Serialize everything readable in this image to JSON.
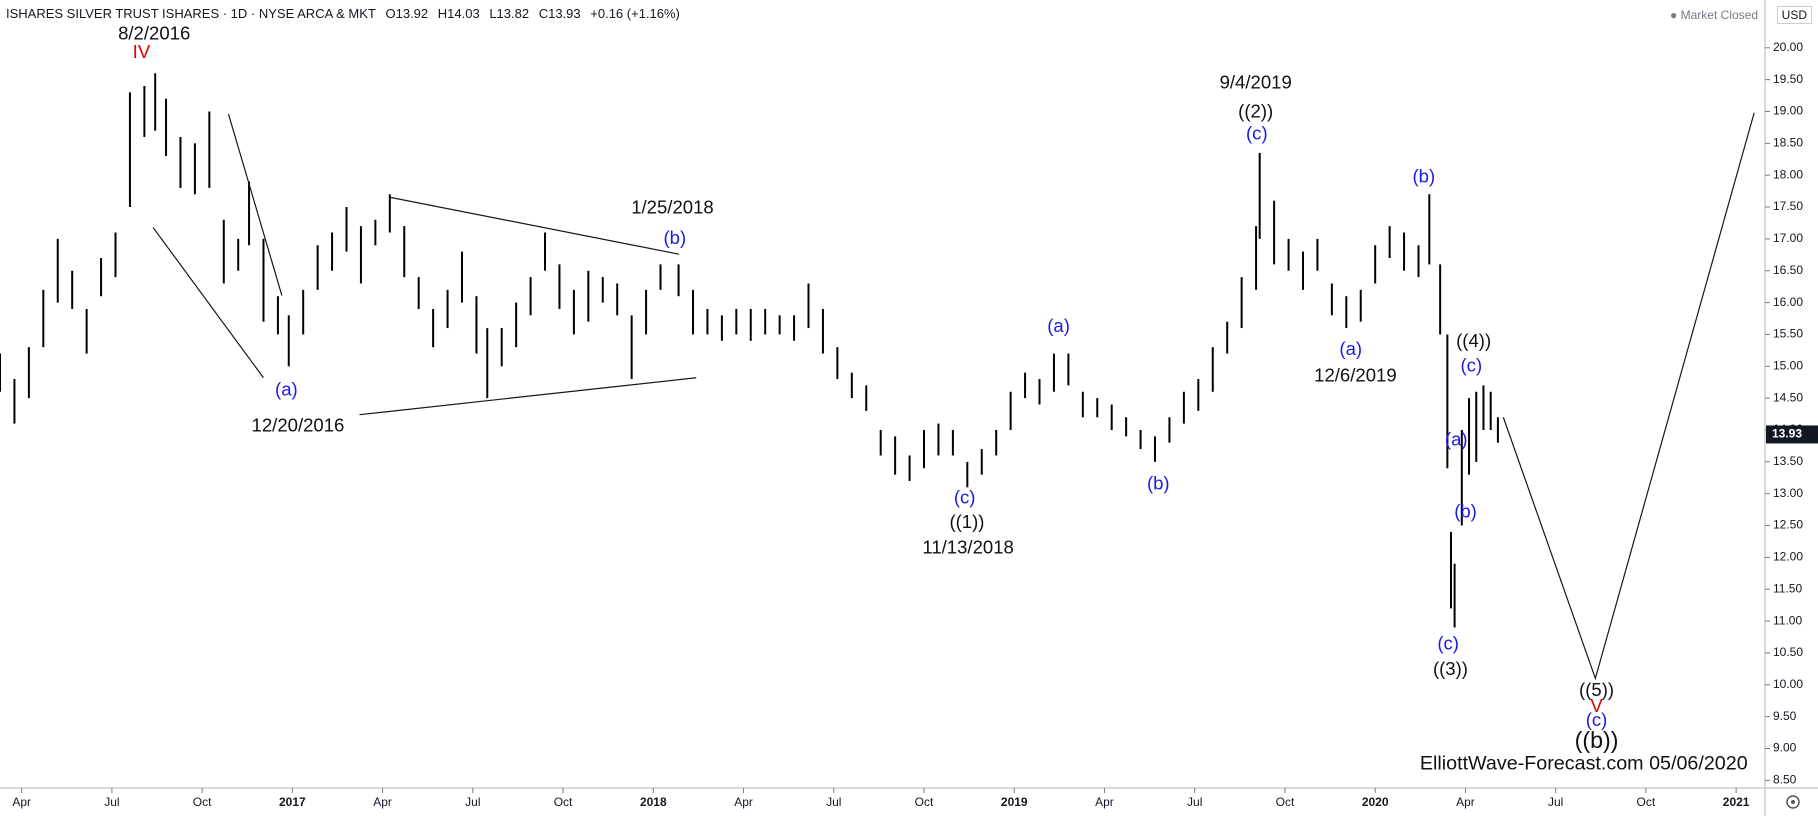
{
  "header": {
    "symbol": "ISHARES SILVER TRUST ISHARES · 1D · NYSE ARCA & MKT",
    "open": "O13.92",
    "high": "H14.03",
    "low": "L13.82",
    "close": "C13.93",
    "change": "+0.16 (+1.16%)",
    "status": "Market Closed",
    "currency": "USD"
  },
  "chart_data": {
    "type": "ohlc",
    "color": "#000000",
    "x": [
      2016.19,
      2016.23,
      2016.27,
      2016.31,
      2016.35,
      2016.39,
      2016.43,
      2016.47,
      2016.51,
      2016.55,
      2016.59,
      2016.62,
      2016.65,
      2016.69,
      2016.73,
      2016.77,
      2016.81,
      2016.85,
      2016.88,
      2016.92,
      2016.96,
      2016.99,
      2017.03,
      2017.07,
      2017.11,
      2017.15,
      2017.19,
      2017.23,
      2017.27,
      2017.31,
      2017.35,
      2017.39,
      2017.43,
      2017.47,
      2017.51,
      2017.54,
      2017.58,
      2017.62,
      2017.66,
      2017.7,
      2017.74,
      2017.78,
      2017.82,
      2017.86,
      2017.9,
      2017.94,
      2017.98,
      2018.02,
      2018.07,
      2018.11,
      2018.15,
      2018.19,
      2018.23,
      2018.27,
      2018.31,
      2018.35,
      2018.39,
      2018.43,
      2018.47,
      2018.51,
      2018.55,
      2018.59,
      2018.63,
      2018.67,
      2018.71,
      2018.75,
      2018.79,
      2018.83,
      2018.87,
      2018.91,
      2018.95,
      2018.99,
      2019.03,
      2019.07,
      2019.11,
      2019.15,
      2019.19,
      2019.23,
      2019.27,
      2019.31,
      2019.35,
      2019.39,
      2019.43,
      2019.47,
      2019.51,
      2019.55,
      2019.59,
      2019.63,
      2019.67,
      2019.68,
      2019.72,
      2019.76,
      2019.8,
      2019.84,
      2019.88,
      2019.92,
      2019.96,
      2020.0,
      2020.04,
      2020.08,
      2020.12,
      2020.15,
      2020.18,
      2020.2,
      2020.21,
      2020.22,
      2020.24,
      2020.26,
      2020.28,
      2020.3,
      2020.32,
      2020.34
    ],
    "high": [
      15.2,
      14.8,
      15.3,
      16.2,
      17.0,
      16.5,
      15.9,
      16.7,
      17.1,
      19.3,
      19.4,
      19.6,
      19.2,
      18.6,
      18.5,
      19.0,
      17.3,
      17.0,
      17.9,
      17.0,
      16.1,
      15.8,
      16.2,
      16.9,
      17.1,
      17.5,
      17.2,
      17.3,
      17.7,
      17.2,
      16.4,
      15.9,
      16.2,
      16.8,
      16.1,
      15.6,
      15.6,
      16.0,
      16.4,
      17.1,
      16.6,
      16.2,
      16.5,
      16.4,
      16.3,
      15.8,
      16.2,
      16.6,
      16.6,
      16.2,
      15.9,
      15.8,
      15.9,
      15.9,
      15.9,
      15.8,
      15.8,
      16.3,
      15.9,
      15.3,
      14.9,
      14.7,
      14.0,
      13.9,
      13.6,
      14.0,
      14.1,
      14.0,
      13.5,
      13.7,
      14.0,
      14.6,
      14.9,
      14.8,
      15.2,
      15.2,
      14.6,
      14.5,
      14.4,
      14.2,
      14.0,
      13.9,
      14.2,
      14.6,
      14.8,
      15.3,
      15.7,
      16.4,
      17.2,
      18.35,
      17.6,
      17.0,
      16.8,
      17.0,
      16.3,
      16.1,
      16.2,
      16.9,
      17.2,
      17.1,
      16.9,
      17.7,
      16.6,
      15.5,
      12.4,
      11.9,
      14.0,
      14.5,
      14.6,
      14.7,
      14.6,
      14.2
    ],
    "low": [
      14.6,
      14.1,
      14.5,
      15.3,
      16.0,
      15.9,
      15.2,
      16.1,
      16.4,
      17.5,
      18.6,
      18.7,
      18.3,
      17.8,
      17.7,
      17.8,
      16.3,
      16.5,
      16.9,
      15.7,
      15.5,
      15.0,
      15.5,
      16.2,
      16.5,
      16.8,
      16.3,
      16.9,
      17.1,
      16.4,
      15.9,
      15.3,
      15.6,
      16.0,
      15.2,
      14.5,
      15.0,
      15.3,
      15.8,
      16.5,
      15.9,
      15.5,
      15.7,
      16.0,
      15.8,
      14.8,
      15.5,
      16.2,
      16.1,
      15.5,
      15.5,
      15.4,
      15.5,
      15.4,
      15.5,
      15.5,
      15.4,
      15.6,
      15.2,
      14.8,
      14.5,
      14.3,
      13.6,
      13.3,
      13.2,
      13.4,
      13.6,
      13.6,
      13.1,
      13.3,
      13.6,
      14.0,
      14.5,
      14.4,
      14.6,
      14.7,
      14.2,
      14.2,
      14.0,
      13.9,
      13.7,
      13.5,
      13.8,
      14.1,
      14.3,
      14.6,
      15.2,
      15.6,
      16.2,
      17.0,
      16.6,
      16.5,
      16.2,
      16.5,
      15.8,
      15.6,
      15.7,
      16.3,
      16.7,
      16.5,
      16.4,
      16.6,
      15.5,
      13.4,
      11.2,
      10.9,
      12.5,
      13.3,
      13.5,
      14.0,
      14.0,
      13.8
    ],
    "last_price": 13.93,
    "lines": [
      {
        "x": [
          2016.823,
          2016.971
        ],
        "values": [
          18.96,
          16.11
        ]
      },
      {
        "x": [
          2016.614,
          2016.92
        ],
        "values": [
          17.18,
          14.82
        ]
      },
      {
        "x": [
          2017.273,
          2018.071
        ],
        "values": [
          17.65,
          16.76
        ]
      },
      {
        "x": [
          2017.186,
          2018.119
        ],
        "values": [
          14.24,
          14.82
        ]
      },
      {
        "x": [
          2020.355,
          2020.61,
          2021.05
        ],
        "values": [
          14.2,
          10.1,
          18.98
        ]
      }
    ],
    "annotations": [
      "8/2/2016",
      "IV",
      "(a)",
      "12/20/2016",
      "1/25/2018",
      "(b)",
      "(c)",
      "((1))",
      "11/13/2018",
      "(a)",
      "(b)",
      "9/4/2019",
      "((2))",
      "(c)",
      "(a)",
      "12/6/2019",
      "(b)",
      "((4))",
      "(c)",
      "(a)",
      "(b)",
      "(c)",
      "((3))",
      "((5))",
      "V",
      "(c)",
      "((b))",
      "ElliottWave-Forecast.com 05/06/2020"
    ],
    "xlim": [
      2016.19,
      2021.08
    ],
    "ylim": [
      8.38,
      20.75
    ],
    "xticks": [
      {
        "value": 2016.25,
        "label": "Apr"
      },
      {
        "value": 2016.5,
        "label": "Jul"
      },
      {
        "value": 2016.75,
        "label": "Oct"
      },
      {
        "value": 2017,
        "label": "2017"
      },
      {
        "value": 2017.25,
        "label": "Apr"
      },
      {
        "value": 2017.5,
        "label": "Jul"
      },
      {
        "value": 2017.75,
        "label": "Oct"
      },
      {
        "value": 2018,
        "label": "2018"
      },
      {
        "value": 2018.25,
        "label": "Apr"
      },
      {
        "value": 2018.5,
        "label": "Jul"
      },
      {
        "value": 2018.75,
        "label": "Oct"
      },
      {
        "value": 2019,
        "label": "2019"
      },
      {
        "value": 2019.25,
        "label": "Apr"
      },
      {
        "value": 2019.5,
        "label": "Jul"
      },
      {
        "value": 2019.75,
        "label": "Oct"
      },
      {
        "value": 2020,
        "label": "2020"
      },
      {
        "value": 2020.25,
        "label": "Apr"
      },
      {
        "value": 2020.5,
        "label": "Jul"
      },
      {
        "value": 2020.75,
        "label": "Oct"
      },
      {
        "value": 2021,
        "label": "2021"
      }
    ],
    "yticks": [
      {
        "value": 8.5,
        "label": "8.50"
      },
      {
        "value": 9,
        "label": "9.00"
      },
      {
        "value": 9.5,
        "label": "9.50"
      },
      {
        "value": 10,
        "label": "10.00"
      },
      {
        "value": 10.5,
        "label": "10.50"
      },
      {
        "value": 11,
        "label": "11.00"
      },
      {
        "value": 11.5,
        "label": "11.50"
      },
      {
        "value": 12,
        "label": "12.00"
      },
      {
        "value": 12.5,
        "label": "12.50"
      },
      {
        "value": 13,
        "label": "13.00"
      },
      {
        "value": 13.5,
        "label": "13.50"
      },
      {
        "value": 14,
        "label": "14.00"
      },
      {
        "value": 14.5,
        "label": "14.50"
      },
      {
        "value": 15,
        "label": "15.00"
      },
      {
        "value": 15.5,
        "label": "15.50"
      },
      {
        "value": 16,
        "label": "16.00"
      },
      {
        "value": 16.5,
        "label": "16.50"
      },
      {
        "value": 17,
        "label": "17.00"
      },
      {
        "value": 17.5,
        "label": "17.50"
      },
      {
        "value": 18,
        "label": "18.00"
      },
      {
        "value": 18.5,
        "label": "18.50"
      },
      {
        "value": 19,
        "label": "19.00"
      },
      {
        "value": 19.5,
        "label": "19.50"
      },
      {
        "value": 20,
        "label": "20.00"
      }
    ]
  }
}
